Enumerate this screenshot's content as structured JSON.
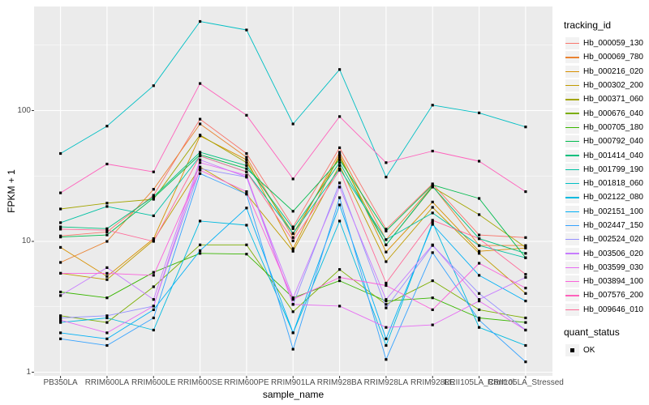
{
  "chart_data": {
    "type": "line",
    "title": "",
    "xlabel": "sample_name",
    "ylabel": "FPKM + 1",
    "y_scale": "log10",
    "ylim": [
      0.95,
      620
    ],
    "grid": true,
    "legend_position": "right",
    "y_ticks": [
      {
        "label": "1",
        "value": 1
      },
      {
        "label": "10",
        "value": 10
      },
      {
        "label": "100",
        "value": 100
      }
    ],
    "y_minor_breaks": [
      3.162,
      31.62,
      316.2
    ],
    "categories": [
      "PB350LA",
      "RRIM600LA",
      "RRIM600LE",
      "RRIM600SE",
      "RRIM600PE",
      "RRIM901LA",
      "RRIM928BA",
      "RRIM928LA",
      "RRIM928LE",
      "RRII105LA_Control",
      "RRII105LA_Stressed"
    ],
    "point_shape": "filled-square",
    "point_color": "#000000",
    "series": [
      {
        "name": "Hb_000059_130",
        "color": "#F8766D",
        "values": [
          11.0,
          11.8,
          22.5,
          86,
          47,
          12.9,
          52,
          12.4,
          27.5,
          11.2,
          10.7
        ]
      },
      {
        "name": "Hb_000069_780",
        "color": "#EA8331",
        "values": [
          6.9,
          10.0,
          25,
          79,
          44,
          10.7,
          48,
          10.3,
          26.5,
          9.3,
          9.3
        ]
      },
      {
        "name": "Hb_000216_020",
        "color": "#D89000",
        "values": [
          9.0,
          5.4,
          10.5,
          64,
          42,
          8.8,
          46,
          8.3,
          20,
          8.4,
          8.9
        ]
      },
      {
        "name": "Hb_000302_200",
        "color": "#C09B00",
        "values": [
          5.7,
          5.1,
          10.2,
          37,
          23,
          8.4,
          38,
          7.0,
          18.2,
          8.1,
          4.0
        ]
      },
      {
        "name": "Hb_000371_060",
        "color": "#A3A500",
        "values": [
          17.7,
          19.6,
          21,
          65,
          40,
          11.5,
          44,
          9.4,
          26,
          16.0,
          9.0
        ]
      },
      {
        "name": "Hb_000676_040",
        "color": "#7CAE00",
        "values": [
          2.7,
          2.4,
          4.5,
          9.4,
          9.4,
          2.9,
          6.1,
          3.3,
          5.0,
          3.0,
          2.6
        ]
      },
      {
        "name": "Hb_000705_180",
        "color": "#39B600",
        "values": [
          4.1,
          3.7,
          5.8,
          8.1,
          8.0,
          3.7,
          5.0,
          3.5,
          3.7,
          2.6,
          2.4
        ]
      },
      {
        "name": "Hb_000792_040",
        "color": "#00BB4E",
        "values": [
          10.8,
          11.2,
          21.5,
          46,
          36,
          17.0,
          42,
          12.0,
          27,
          21.3,
          7.5
        ]
      },
      {
        "name": "Hb_001414_040",
        "color": "#00BF7D",
        "values": [
          12.9,
          12.5,
          22,
          48,
          38,
          12.5,
          40,
          9.4,
          26.3,
          10.5,
          8.1
        ]
      },
      {
        "name": "Hb_001799_190",
        "color": "#00C1A3",
        "values": [
          13.9,
          18.5,
          15.7,
          45,
          34,
          11.5,
          36,
          10.3,
          16.5,
          9.3,
          7.5
        ]
      },
      {
        "name": "Hb_001818_060",
        "color": "#00BFC4",
        "values": [
          47,
          76,
          155,
          480,
          413,
          79,
          206,
          31,
          110,
          96,
          75
        ]
      },
      {
        "name": "Hb_002122_080",
        "color": "#00BAE0",
        "values": [
          2.4,
          2.6,
          2.1,
          14.3,
          13.3,
          2.0,
          14.3,
          1.6,
          14.0,
          2.2,
          1.6
        ]
      },
      {
        "name": "Hb_002151_100",
        "color": "#00B0F6",
        "values": [
          2.0,
          1.8,
          3.0,
          8.5,
          18,
          2.0,
          19,
          1.8,
          13.5,
          5.5,
          3.5
        ]
      },
      {
        "name": "Hb_002447_150",
        "color": "#35A2FF",
        "values": [
          1.8,
          1.6,
          2.6,
          33,
          23,
          1.5,
          21.6,
          1.25,
          8.2,
          2.5,
          1.2
        ]
      },
      {
        "name": "Hb_002524_020",
        "color": "#9590FF",
        "values": [
          2.6,
          2.7,
          3.2,
          36,
          31,
          3.3,
          28,
          3.1,
          9.3,
          4.0,
          2.1
        ]
      },
      {
        "name": "Hb_003506_020",
        "color": "#C77CFF",
        "values": [
          3.85,
          6.3,
          3.6,
          42,
          31,
          3.7,
          26,
          3.6,
          9.4,
          3.6,
          5.3
        ]
      },
      {
        "name": "Hb_003599_030",
        "color": "#E76BF3",
        "values": [
          2.5,
          2.0,
          3.2,
          40,
          32,
          3.3,
          3.2,
          2.2,
          2.3,
          3.5,
          2.1
        ]
      },
      {
        "name": "Hb_003894_100",
        "color": "#FA62DB",
        "values": [
          5.7,
          5.7,
          5.5,
          35,
          24,
          3.6,
          5.3,
          4.6,
          3.0,
          6.8,
          4.4
        ]
      },
      {
        "name": "Hb_007576_200",
        "color": "#FF62BC",
        "values": [
          23.5,
          39,
          34,
          161,
          92,
          30,
          90,
          40,
          49,
          41,
          24
        ]
      },
      {
        "name": "Hb_009646_010",
        "color": "#FF6A98",
        "values": [
          12.4,
          12.2,
          10.0,
          45,
          34,
          10.1,
          35,
          4.8,
          14.5,
          10.5,
          5.6
        ]
      }
    ],
    "legend": {
      "color_title": "tracking_id",
      "shape_title": "quant_status",
      "shape_items": [
        "OK"
      ]
    }
  },
  "colors": {
    "panel_bg": "#EBEBEB",
    "grid": "#FFFFFF",
    "tick_mark": "#333333",
    "tick_label": "#4D4D4D",
    "axis_title": "#000000",
    "legend_key_bg": "#F2F2F2",
    "point": "#000000"
  }
}
